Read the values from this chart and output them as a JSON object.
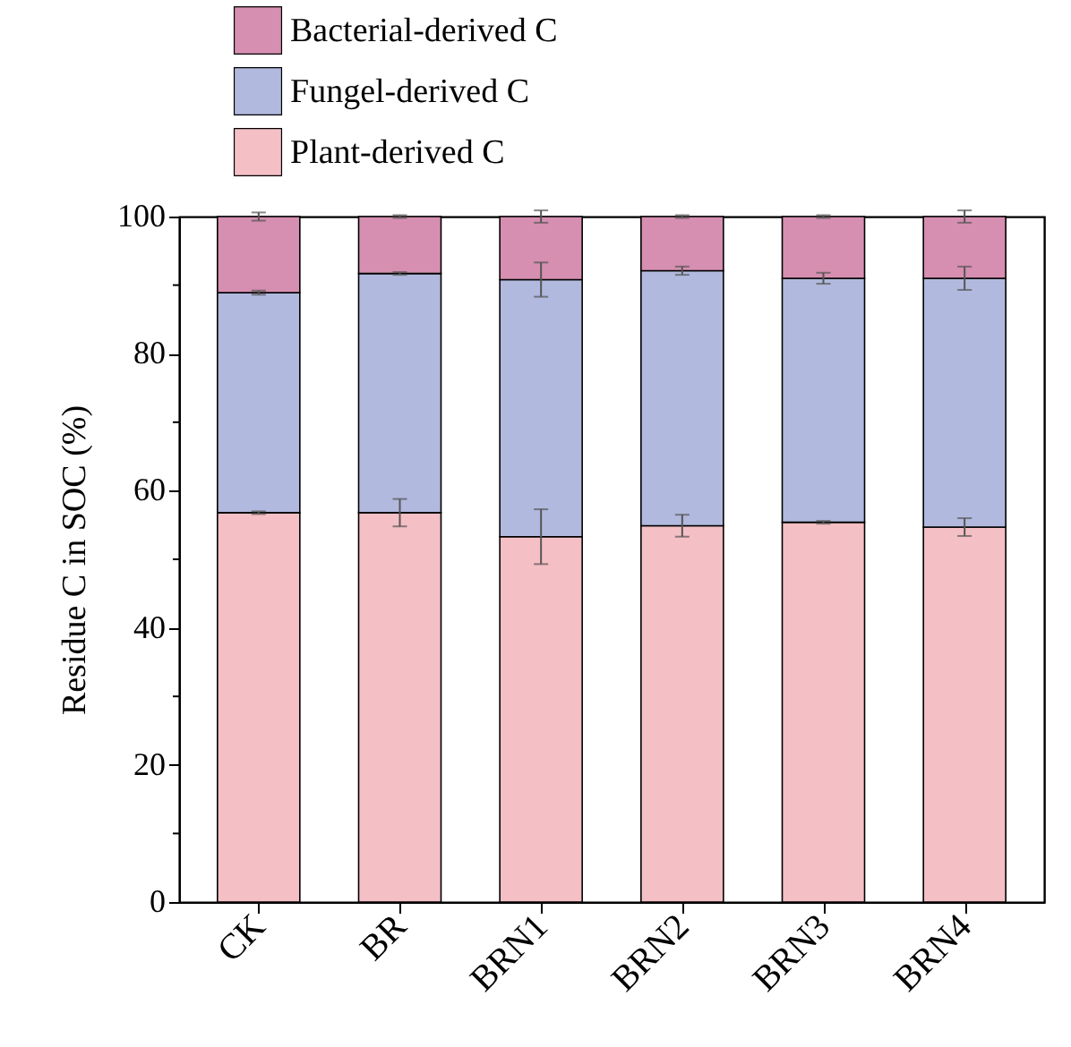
{
  "chart_data": {
    "type": "bar",
    "stacked": true,
    "ylabel": "Residue C in SOC (%)",
    "categories": [
      "CK",
      "BR",
      "BRN1",
      "BRN2",
      "BRN3",
      "BRN4"
    ],
    "series": [
      {
        "name": "Plant-derived C",
        "color": "#f5bfc6",
        "values": [
          56.8,
          56.8,
          53.3,
          54.9,
          55.4,
          54.7
        ],
        "errors": [
          0.2,
          2.0,
          4.0,
          1.6,
          0.2,
          1.3
        ]
      },
      {
        "name": "Fungel-derived C",
        "color": "#b1b9de",
        "values": [
          32.1,
          34.9,
          37.5,
          37.2,
          35.6,
          36.3
        ],
        "errors": [
          0.3,
          0.2,
          2.5,
          0.6,
          0.8,
          1.7
        ]
      },
      {
        "name": "Bacterial-derived C",
        "color": "#d68fb0",
        "values": [
          11.1,
          8.3,
          9.2,
          7.9,
          9.0,
          9.0
        ],
        "errors": [
          0.6,
          0.2,
          0.9,
          0.2,
          0.2,
          0.9
        ]
      }
    ],
    "ylim": [
      0,
      100
    ],
    "yticks": [
      0,
      {
        "value": 10,
        "label": null
      },
      20,
      {
        "value": 30,
        "label": null
      },
      40,
      {
        "value": 50,
        "label": null
      },
      60,
      {
        "value": 70,
        "label": null
      },
      80,
      {
        "value": 90,
        "label": null
      },
      100
    ],
    "legend": "top",
    "grid": false
  }
}
